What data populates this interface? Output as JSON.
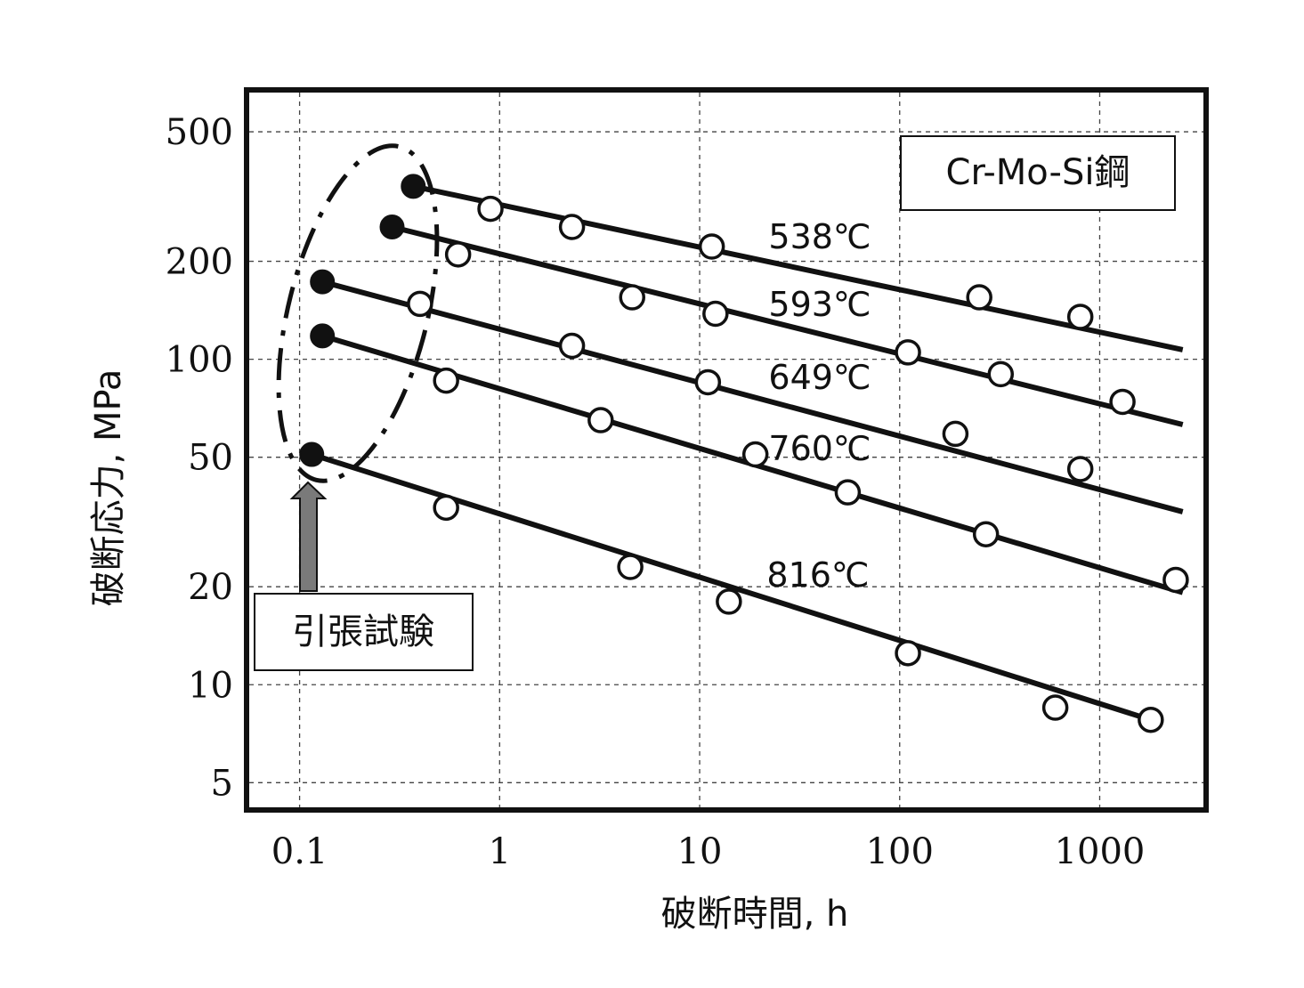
{
  "chart_data": {
    "type": "line",
    "xlabel": "破断時間, h",
    "ylabel": "破断応力, MPa",
    "x_scale": "log",
    "y_scale": "log",
    "xlim": [
      0.056,
      3300
    ],
    "ylim": [
      4.2,
      660
    ],
    "x_ticks": [
      "0.1",
      "1",
      "10",
      "100",
      "1000"
    ],
    "x_tick_values": [
      0.1,
      1,
      10,
      100,
      1000
    ],
    "y_ticks": [
      "500",
      "200",
      "100",
      "50",
      "20",
      "10",
      "5"
    ],
    "y_tick_values": [
      500,
      200,
      100,
      50,
      20,
      10,
      5
    ],
    "grid": true,
    "legend_box": "Cr-Mo-Si鋼",
    "annotation": "引張試験",
    "series": [
      {
        "name": "538℃",
        "fit_line": [
          [
            0.37,
            340
          ],
          [
            2600,
            107
          ]
        ],
        "tensile_points": [
          [
            0.37,
            340
          ]
        ],
        "creep_points": [
          [
            0.9,
            290
          ],
          [
            2.3,
            255
          ],
          [
            11.5,
            222
          ],
          [
            250,
            155
          ],
          [
            800,
            135
          ]
        ]
      },
      {
        "name": "593℃",
        "fit_line": [
          [
            0.29,
            255
          ],
          [
            2600,
            63
          ]
        ],
        "tensile_points": [
          [
            0.29,
            255
          ]
        ],
        "creep_points": [
          [
            0.62,
            210
          ],
          [
            4.6,
            155
          ],
          [
            12,
            138
          ],
          [
            110,
            105
          ],
          [
            320,
            90
          ],
          [
            1300,
            74
          ]
        ]
      },
      {
        "name": "649℃",
        "fit_line": [
          [
            0.13,
            173
          ],
          [
            2600,
            34
          ]
        ],
        "tensile_points": [
          [
            0.13,
            173
          ]
        ],
        "creep_points": [
          [
            0.4,
            148
          ],
          [
            2.3,
            110
          ],
          [
            11,
            85
          ],
          [
            190,
            59
          ],
          [
            800,
            46
          ]
        ]
      },
      {
        "name": "760℃",
        "fit_line": [
          [
            0.13,
            118
          ],
          [
            2600,
            19.2
          ]
        ],
        "tensile_points": [
          [
            0.13,
            118
          ]
        ],
        "creep_points": [
          [
            0.54,
            86
          ],
          [
            3.2,
            65
          ],
          [
            19,
            51
          ],
          [
            55,
            39
          ],
          [
            270,
            29
          ],
          [
            2400,
            21
          ]
        ]
      },
      {
        "name": "816℃",
        "fit_line": [
          [
            0.115,
            51
          ],
          [
            1800,
            7.8
          ]
        ],
        "tensile_points": [
          [
            0.115,
            51
          ]
        ],
        "creep_points": [
          [
            0.54,
            35
          ],
          [
            4.5,
            23
          ],
          [
            14,
            18
          ],
          [
            110,
            12.5
          ],
          [
            600,
            8.5
          ],
          [
            1800,
            7.8
          ]
        ]
      }
    ]
  }
}
